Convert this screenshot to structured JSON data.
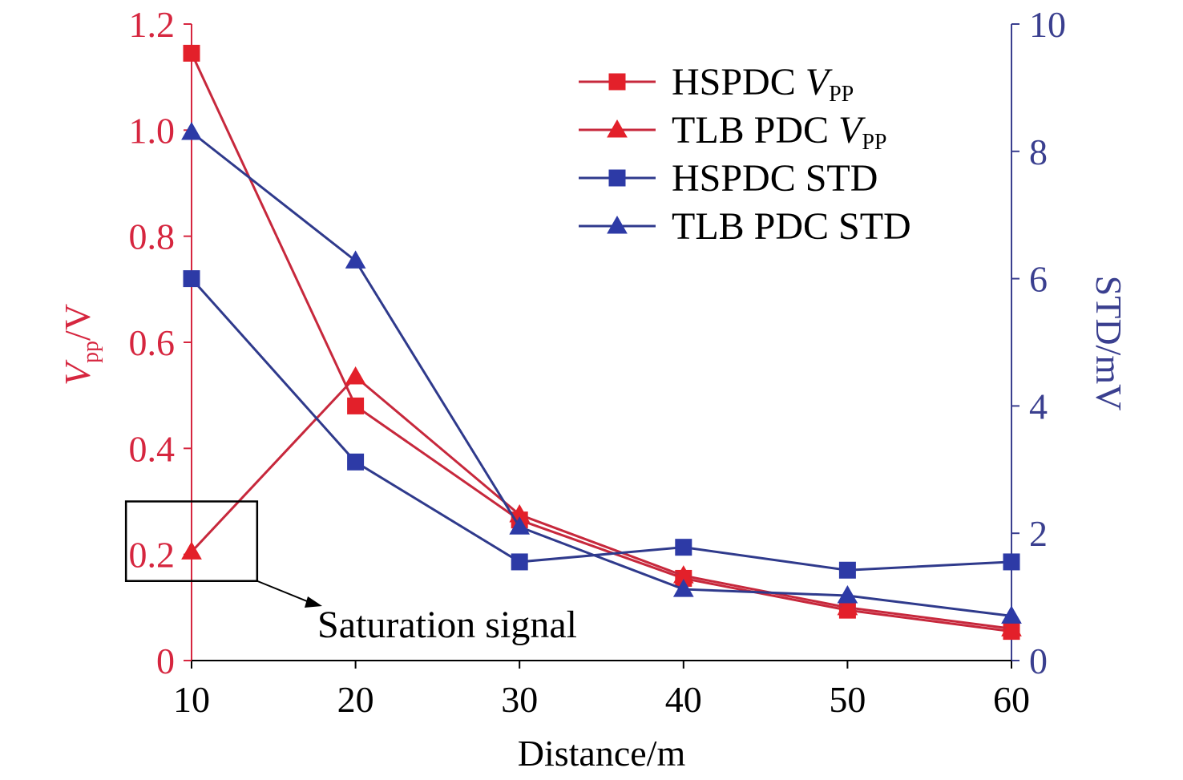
{
  "colors": {
    "left_axis": "#d6263f",
    "right_axis": "#3a3f8f",
    "x_axis": "#000000",
    "red_series": "#e3202a",
    "red_line": "#c7283c",
    "blue_series": "#2d3aa6",
    "blue_line": "#2f3a8c",
    "annotation": "#000000"
  },
  "chart_data": {
    "type": "line",
    "x": [
      10,
      20,
      30,
      40,
      50,
      60
    ],
    "xlabel": "Distance/m",
    "xlim": [
      10,
      60
    ],
    "x_ticks": [
      "10",
      "20",
      "30",
      "40",
      "50",
      "60"
    ],
    "ylabel_left": {
      "main": "V",
      "sub": "pp",
      "suffix": "/V"
    },
    "ylim_left": [
      0,
      1.2
    ],
    "y_left_ticks": [
      "0",
      "0.2",
      "0.4",
      "0.6",
      "0.8",
      "1.0",
      "1.2"
    ],
    "ylabel_right": "STD/mV",
    "ylim_right": [
      0,
      10
    ],
    "y_right_ticks": [
      "0",
      "2",
      "4",
      "6",
      "8",
      "10"
    ],
    "grid": false,
    "legend_position": "top-right",
    "series": [
      {
        "name": "HSPDC V_PP",
        "legend": {
          "text": "HSPDC ",
          "italic": "V",
          "sub": "PP"
        },
        "axis": "left",
        "marker": "square",
        "color": "red",
        "values": [
          1.145,
          0.48,
          0.265,
          0.155,
          0.095,
          0.055
        ]
      },
      {
        "name": "TLB PDC V_PP",
        "legend": {
          "text": "TLB PDC ",
          "italic": "V",
          "sub": "PP"
        },
        "axis": "left",
        "marker": "triangle",
        "color": "red",
        "values": [
          0.205,
          0.535,
          0.275,
          0.16,
          0.1,
          0.06
        ]
      },
      {
        "name": "HSPDC STD",
        "legend": {
          "text": "HSPDC STD",
          "italic": "",
          "sub": ""
        },
        "axis": "right",
        "marker": "square",
        "color": "blue",
        "values": [
          6.0,
          3.12,
          1.55,
          1.78,
          1.42,
          1.55
        ]
      },
      {
        "name": "TLB PDC STD",
        "legend": {
          "text": "TLB PDC STD",
          "italic": "",
          "sub": ""
        },
        "axis": "right",
        "marker": "triangle",
        "color": "blue",
        "values": [
          8.3,
          6.28,
          2.1,
          1.12,
          1.02,
          0.7
        ]
      }
    ],
    "annotation": {
      "text": "Saturation signal",
      "box_x": [
        6.0,
        14.0
      ],
      "box_y_left": [
        0.15,
        0.3
      ]
    }
  }
}
